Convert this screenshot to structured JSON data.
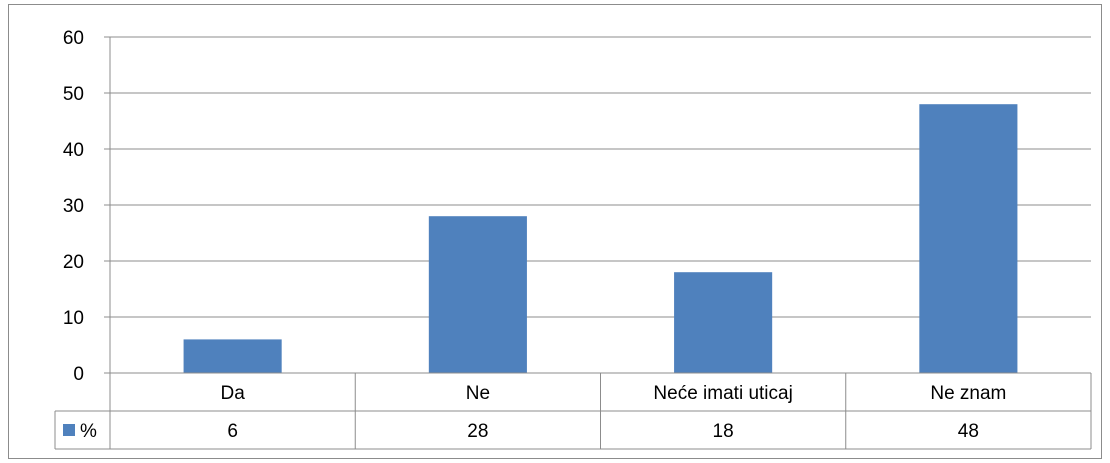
{
  "chart_data": {
    "type": "bar",
    "categories": [
      "Da",
      "Ne",
      "Neće imati uticaj",
      "Ne znam"
    ],
    "series": [
      {
        "name": "%",
        "values": [
          6,
          28,
          18,
          48
        ],
        "color": "#4F81BD"
      }
    ],
    "ylim": [
      0,
      60
    ],
    "yticks": [
      0,
      10,
      20,
      30,
      40,
      50,
      60
    ],
    "grid": true,
    "legend": "data-table",
    "data_table": true
  }
}
